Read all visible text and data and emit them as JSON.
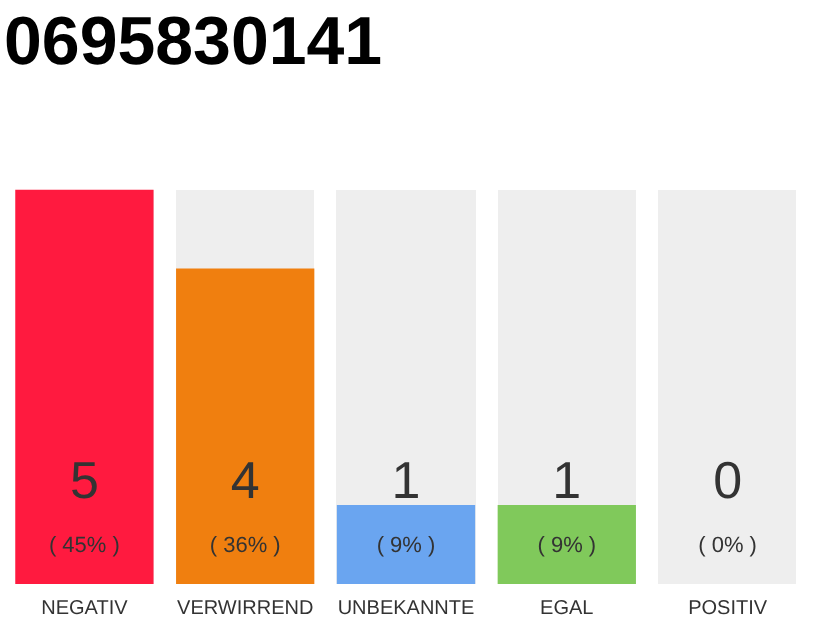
{
  "chart_data": {
    "type": "bar",
    "title": "0695830141",
    "categories": [
      "NEGATIV",
      "VERWIRREND",
      "UNBEKANNTE",
      "EGAL",
      "POSITIV"
    ],
    "values": [
      5,
      4,
      1,
      1,
      0
    ],
    "colors": [
      "#ff1a3f",
      "#f07f0f",
      "#6aa5f0",
      "#80c95b",
      "#bbbbbb"
    ],
    "value_labels": [
      "5\n( 45% )",
      "4\n( 36% )",
      "1\n( 9% )",
      "1\n( 9% )",
      "0\n( 0% )"
    ],
    "grid": false,
    "legend": false
  }
}
